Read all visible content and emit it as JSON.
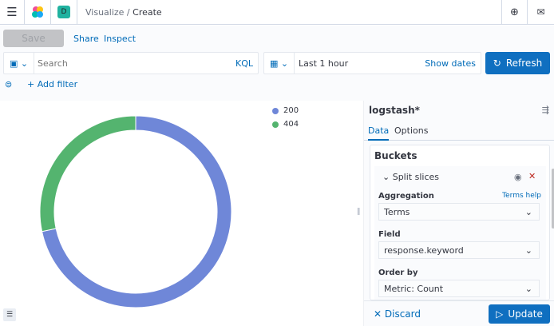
{
  "header": {
    "breadcrumb": [
      "Visualize",
      "Create"
    ],
    "space_initial": "D",
    "icons": [
      "menu-icon",
      "kibana-logo",
      "help-icon",
      "mail-icon"
    ]
  },
  "toolbar": {
    "save": "Save",
    "share": "Share",
    "inspect": "Inspect"
  },
  "query": {
    "placeholder": "Search",
    "language": "KQL",
    "add_filter": "+ Add filter"
  },
  "time": {
    "range": "Last 1 hour",
    "show_dates": "Show dates",
    "refresh": "Refresh"
  },
  "colors": {
    "accent": "#0f6fc0",
    "series_200": "#6f87d8",
    "series_404": "#54b46f"
  },
  "chart_data": {
    "type": "pie",
    "donut": true,
    "categories": [
      "200",
      "404"
    ],
    "values": [
      71.7,
      28.3
    ],
    "legend": "top-right"
  },
  "panel": {
    "index": "logstash*",
    "tabs": [
      "Data",
      "Options"
    ],
    "active_tab": "Data",
    "section": "Buckets",
    "bucket": "Split slices",
    "aggregation_label": "Aggregation",
    "aggregation_help": "Terms help",
    "aggregation": "Terms",
    "field_label": "Field",
    "field": "response.keyword",
    "order_label": "Order by",
    "order": "Metric: Count",
    "discard": "Discard",
    "update": "Update"
  }
}
